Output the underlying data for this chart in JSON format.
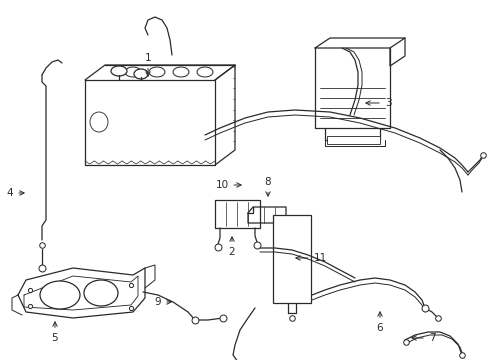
{
  "bg_color": "#ffffff",
  "line_color": "#2a2a2a",
  "lw": 0.9,
  "fig_width": 4.89,
  "fig_height": 3.6,
  "dpi": 100
}
